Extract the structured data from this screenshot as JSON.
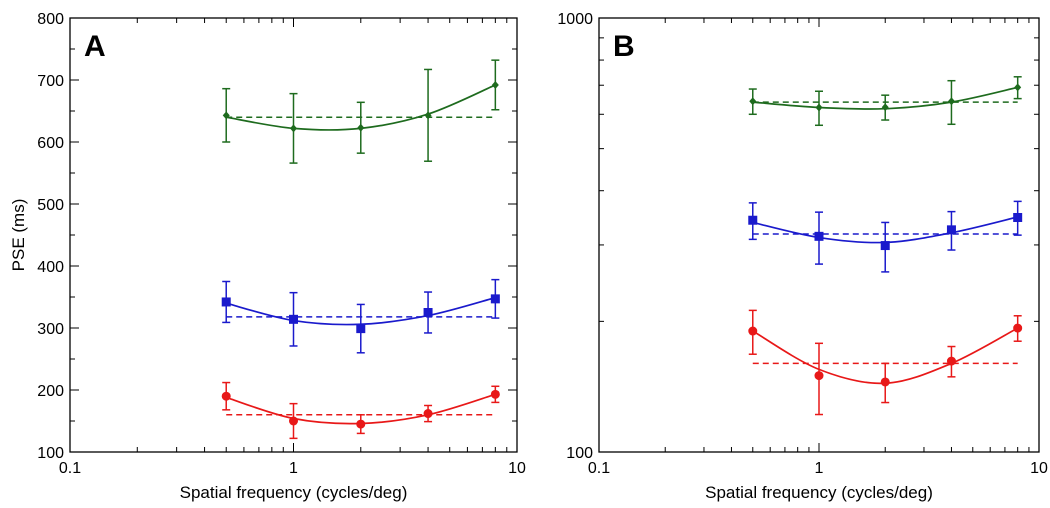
{
  "chart_data": [
    {
      "type": "line",
      "panel_label": "A",
      "xlabel": "Spatial frequency (cycles/deg)",
      "ylabel": "PSE (ms)",
      "xscale": "log",
      "yscale": "linear",
      "xlim": [
        0.1,
        10
      ],
      "ylim": [
        100,
        800
      ],
      "xticks": [
        0.1,
        1,
        10
      ],
      "xtick_labels": [
        "0.1",
        "1",
        "10"
      ],
      "yticks": [
        100,
        200,
        300,
        400,
        500,
        600,
        700,
        800
      ],
      "ytick_labels": [
        "100",
        "200",
        "300",
        "400",
        "500",
        "600",
        "700",
        "800"
      ],
      "grid": false,
      "series": [
        {
          "color": "#1e6b1e",
          "marker": "diamond",
          "x": [
            0.5,
            1,
            2,
            4,
            8
          ],
          "y": [
            643,
            622,
            623,
            643,
            692
          ],
          "err": [
            43,
            56,
            41,
            74,
            40
          ],
          "fit_y": [
            640,
            622,
            622,
            645,
            692
          ],
          "mean": 640
        },
        {
          "color": "#1a1acc",
          "marker": "square",
          "x": [
            0.5,
            1,
            2,
            4,
            8
          ],
          "y": [
            342,
            314,
            299,
            325,
            347
          ],
          "err": [
            33,
            43,
            39,
            33,
            31
          ],
          "fit_y": [
            340,
            312,
            306,
            320,
            349
          ],
          "mean": 318
        },
        {
          "color": "#e81818",
          "marker": "circle",
          "x": [
            0.5,
            1,
            2,
            4,
            8
          ],
          "y": [
            190,
            150,
            145,
            162,
            193
          ],
          "err": [
            22,
            28,
            15,
            13,
            13
          ],
          "fit_y": [
            188,
            154,
            146,
            160,
            193
          ],
          "mean": 160
        }
      ]
    },
    {
      "type": "line",
      "panel_label": "B",
      "xlabel": "Spatial frequency (cycles/deg)",
      "ylabel": "",
      "xscale": "log",
      "yscale": "log",
      "xlim": [
        0.1,
        10
      ],
      "ylim": [
        100,
        1000
      ],
      "xticks": [
        0.1,
        1,
        10
      ],
      "xtick_labels": [
        "0.1",
        "1",
        "10"
      ],
      "yticks": [
        100,
        1000
      ],
      "ytick_labels": [
        "100",
        "1000"
      ],
      "grid": false,
      "series": [
        {
          "color": "#1e6b1e",
          "marker": "diamond",
          "x": [
            0.5,
            1,
            2,
            4,
            8
          ],
          "y": [
            643,
            622,
            623,
            643,
            692
          ],
          "err": [
            43,
            56,
            41,
            74,
            40
          ],
          "fit_y": [
            640,
            622,
            618,
            640,
            692
          ],
          "mean": 640
        },
        {
          "color": "#1a1acc",
          "marker": "square",
          "x": [
            0.5,
            1,
            2,
            4,
            8
          ],
          "y": [
            342,
            314,
            299,
            325,
            347
          ],
          "err": [
            33,
            43,
            39,
            33,
            31
          ],
          "fit_y": [
            338,
            312,
            304,
            320,
            348
          ],
          "mean": 318
        },
        {
          "color": "#e81818",
          "marker": "circle",
          "x": [
            0.5,
            1,
            2,
            4,
            8
          ],
          "y": [
            190,
            150,
            145,
            162,
            193
          ],
          "err": [
            22,
            28,
            15,
            13,
            13
          ],
          "fit_y": [
            190,
            155,
            144,
            160,
            193
          ],
          "mean": 160
        }
      ]
    }
  ]
}
